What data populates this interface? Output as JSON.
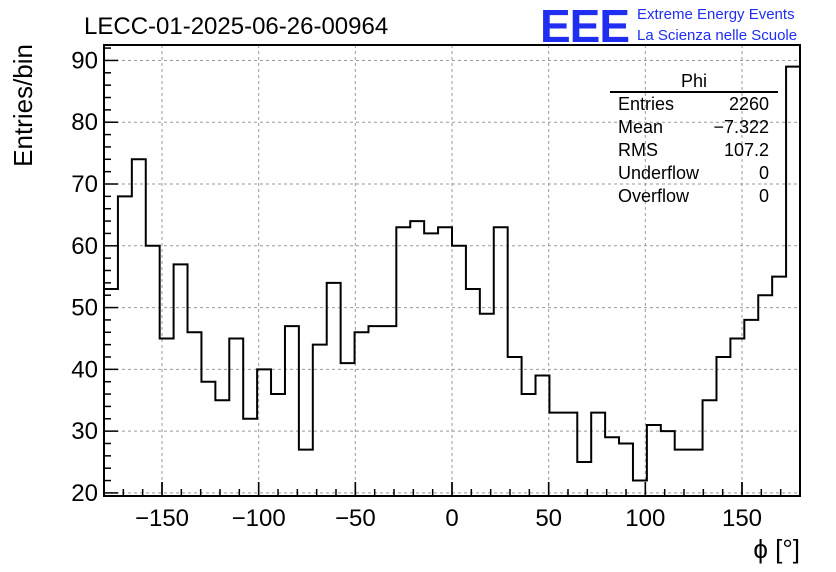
{
  "header": {
    "run_title": "LECC-01-2025-06-26-00964",
    "logo_text": "EEE",
    "brand_line1": "Extreme Energy Events",
    "brand_line2": "La Scienza nelle Scuole"
  },
  "stats_box": {
    "name": "Phi",
    "rows": [
      {
        "label": "Entries",
        "value": "2260"
      },
      {
        "label": "Mean",
        "value": "−7.322"
      },
      {
        "label": "RMS",
        "value": "107.2"
      },
      {
        "label": "Underflow",
        "value": "0"
      },
      {
        "label": "Overflow",
        "value": "0"
      }
    ]
  },
  "chart_data": {
    "type": "bar",
    "style": "step-histogram",
    "title": "LECC-01-2025-06-26-00964",
    "histogram_name": "Phi",
    "xlabel": "ϕ [°]",
    "ylabel": "Entries/bin",
    "xlim": [
      -180,
      180
    ],
    "ylim": [
      19.5,
      92.5
    ],
    "bin_width": 7.2,
    "grid": true,
    "xticks": [
      -150,
      -100,
      -50,
      0,
      50,
      100,
      150
    ],
    "xtick_labels": [
      "−150",
      "−100",
      "−50",
      "0",
      "50",
      "100",
      "150"
    ],
    "yticks": [
      20,
      30,
      40,
      50,
      60,
      70,
      80,
      90
    ],
    "ytick_labels": [
      "20",
      "30",
      "40",
      "50",
      "60",
      "70",
      "80",
      "90"
    ],
    "values": [
      53,
      68,
      74,
      60,
      45,
      57,
      46,
      38,
      35,
      45,
      32,
      40,
      36,
      47,
      27,
      44,
      54,
      41,
      46,
      47,
      47,
      63,
      64,
      62,
      63,
      60,
      53,
      49,
      63,
      42,
      36,
      39,
      33,
      33,
      25,
      33,
      29,
      28,
      22,
      31,
      30,
      27,
      27,
      35,
      42,
      45,
      48,
      52,
      55,
      89
    ],
    "line_color": "#000000",
    "grid_color": "#999999"
  }
}
